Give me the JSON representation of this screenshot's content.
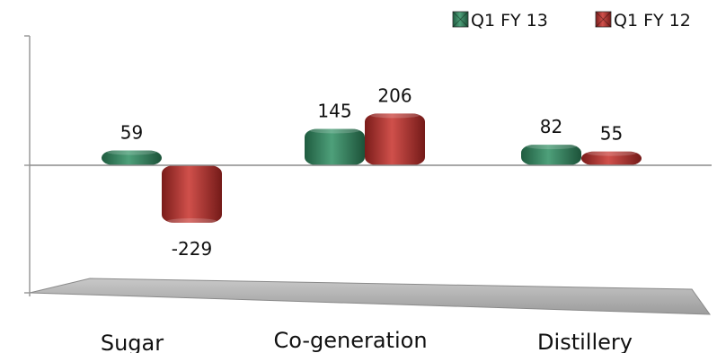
{
  "chart_data": {
    "type": "bar",
    "categories": [
      "Sugar",
      "Co-generation",
      "Distillery"
    ],
    "series": [
      {
        "name": "Q1 FY 13",
        "values": [
          59,
          145,
          82
        ],
        "labels": [
          "59",
          "145",
          "82"
        ],
        "color": "#2e7d5b"
      },
      {
        "name": "Q1 FY 12",
        "values": [
          -229,
          206,
          55
        ],
        "labels": [
          "-229",
          "206",
          "55"
        ],
        "color": "#b0302e"
      }
    ],
    "ylim": [
      -500,
      500
    ],
    "grid": false,
    "legend": "top-right",
    "title": "",
    "xlabel": "",
    "ylabel": ""
  }
}
